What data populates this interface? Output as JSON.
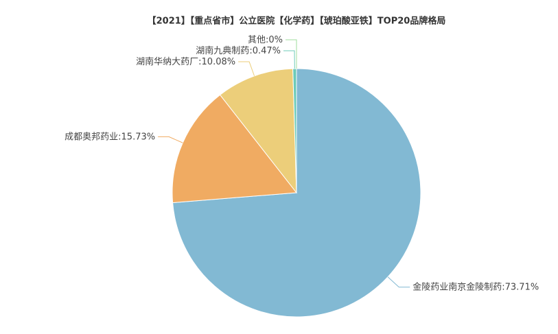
{
  "chart_data": {
    "type": "pie",
    "title": "【2021】【重点省市】公立医院【化学药】【琥珀酸亚铁】TOP20品牌格局",
    "categories": [
      "金陵药业南京金陵制药",
      "成都奥邦药业",
      "湖南华纳大药厂",
      "湖南九典制药",
      "其他"
    ],
    "values": [
      73.71,
      15.73,
      10.08,
      0.47,
      0
    ],
    "value_labels": [
      ":73.71%",
      ":15.73%",
      ":10.08%",
      ":0.47%",
      ":0%"
    ],
    "colors": [
      "#82b9d3",
      "#f0ab62",
      "#ecce7a",
      "#6ccbb8",
      "#9fdc9c"
    ]
  }
}
